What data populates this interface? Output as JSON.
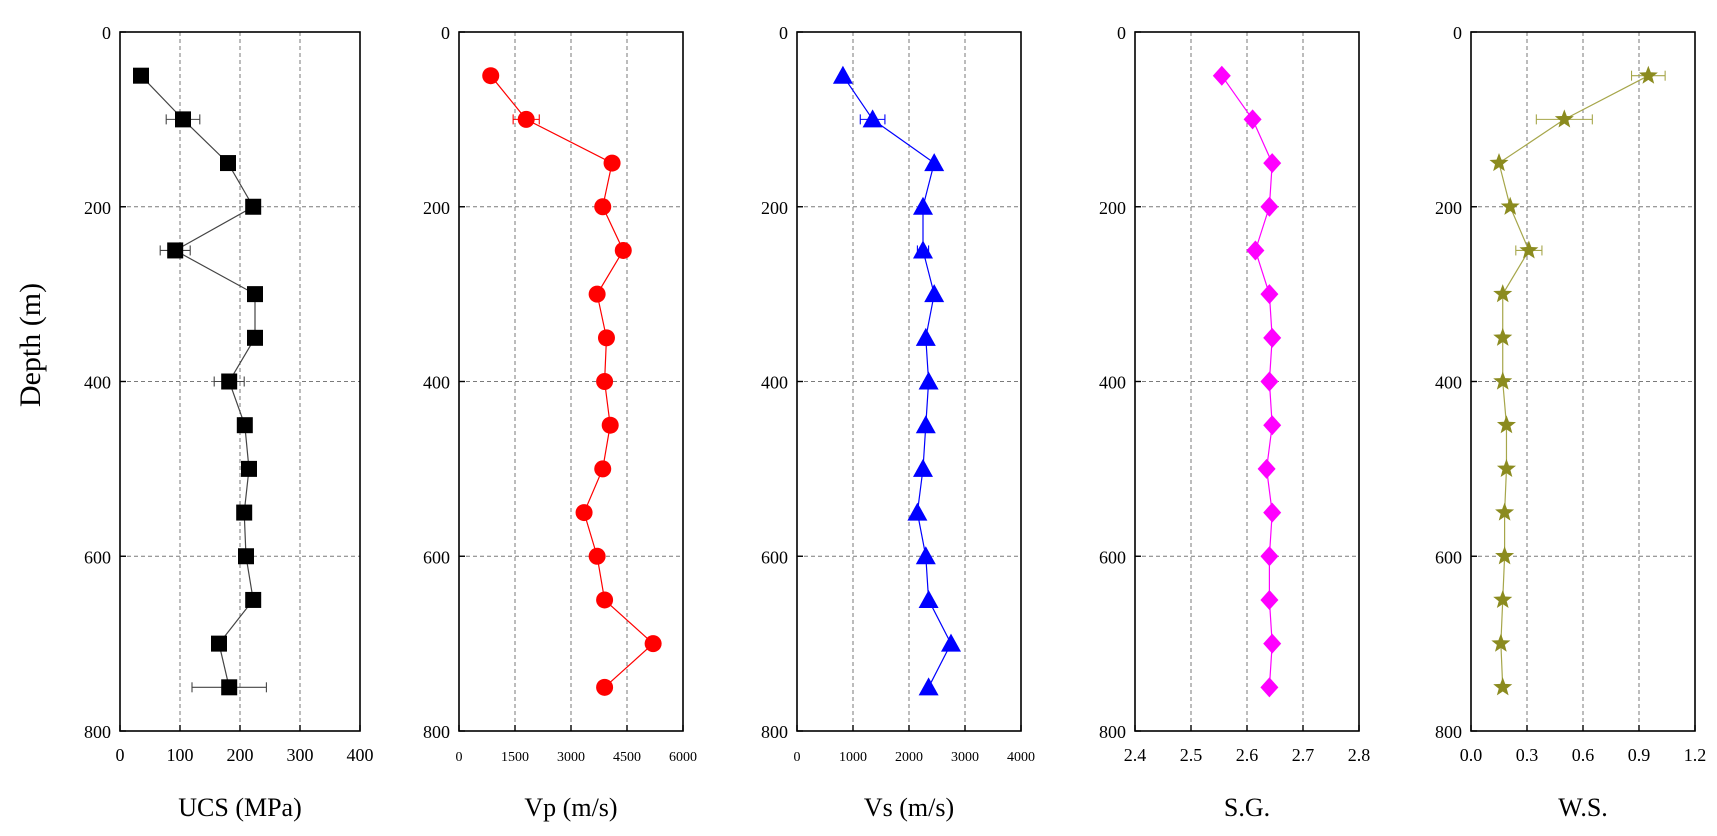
{
  "chart_data": [
    {
      "type": "line",
      "xlabel": "UCS (MPa)",
      "ylabel": "Depth (m)",
      "xlim": [
        0,
        400
      ],
      "ylim": [
        0,
        800
      ],
      "y_reversed": true,
      "xticks": [
        0,
        100,
        200,
        300,
        400
      ],
      "xtick_labels": [
        "0",
        "100",
        "200",
        "300",
        "400"
      ],
      "yticks": [
        0,
        200,
        400,
        600,
        800
      ],
      "ytick_labels": [
        "0",
        "200",
        "400",
        "600",
        "800"
      ],
      "grid": true,
      "color": "#000000",
      "line_color": "#444444",
      "marker": "square",
      "depths": [
        50,
        100,
        150,
        200,
        250,
        300,
        350,
        400,
        450,
        500,
        550,
        600,
        650,
        700,
        750
      ],
      "values": [
        35,
        105,
        180,
        222,
        92,
        225,
        225,
        182,
        208,
        215,
        207,
        210,
        222,
        165,
        182
      ],
      "errors": [
        2,
        28,
        12,
        6,
        25,
        10,
        5,
        25,
        8,
        8,
        8,
        8,
        5,
        5,
        62
      ]
    },
    {
      "type": "line",
      "xlabel": "Vp (m/s)",
      "xlim": [
        0,
        6000
      ],
      "ylim": [
        0,
        800
      ],
      "y_reversed": true,
      "xticks": [
        0,
        1500,
        3000,
        4500,
        6000
      ],
      "xtick_labels": [
        "0",
        "1500",
        "3000",
        "4500",
        "6000"
      ],
      "yticks": [
        0,
        200,
        400,
        600,
        800
      ],
      "ytick_labels": [
        "0",
        "200",
        "400",
        "600",
        "800"
      ],
      "grid": true,
      "color": "#ff0000",
      "line_color": "#ff0000",
      "marker": "circle",
      "depths": [
        50,
        100,
        150,
        200,
        250,
        300,
        350,
        400,
        450,
        500,
        550,
        600,
        650,
        700,
        750
      ],
      "values": [
        850,
        1800,
        4100,
        3850,
        4400,
        3700,
        3950,
        3900,
        4050,
        3850,
        3350,
        3700,
        3900,
        5200,
        3900
      ],
      "errors": [
        0,
        350,
        0,
        0,
        0,
        100,
        0,
        0,
        0,
        0,
        0,
        0,
        0,
        0,
        0
      ]
    },
    {
      "type": "line",
      "xlabel": "Vs (m/s)",
      "xlim": [
        0,
        4000
      ],
      "ylim": [
        0,
        800
      ],
      "y_reversed": true,
      "xticks": [
        0,
        1000,
        2000,
        3000,
        4000
      ],
      "xtick_labels": [
        "0",
        "1000",
        "2000",
        "3000",
        "4000"
      ],
      "yticks": [
        0,
        200,
        400,
        600,
        800
      ],
      "ytick_labels": [
        "0",
        "200",
        "400",
        "600",
        "800"
      ],
      "grid": true,
      "color": "#0000ff",
      "line_color": "#0000ff",
      "marker": "triangle",
      "depths": [
        50,
        100,
        150,
        200,
        250,
        300,
        350,
        400,
        450,
        500,
        550,
        600,
        650,
        700,
        750
      ],
      "values": [
        820,
        1350,
        2450,
        2250,
        2250,
        2450,
        2300,
        2350,
        2300,
        2250,
        2150,
        2300,
        2350,
        2750,
        2350
      ],
      "errors": [
        0,
        220,
        0,
        0,
        100,
        0,
        0,
        0,
        0,
        0,
        0,
        0,
        0,
        0,
        0
      ]
    },
    {
      "type": "line",
      "xlabel": "S.G.",
      "xlim": [
        2.4,
        2.8
      ],
      "ylim": [
        0,
        800
      ],
      "y_reversed": true,
      "xticks": [
        2.4,
        2.5,
        2.6,
        2.7,
        2.8
      ],
      "xtick_labels": [
        "2.4",
        "2.5",
        "2.6",
        "2.7",
        "2.8"
      ],
      "yticks": [
        0,
        200,
        400,
        600,
        800
      ],
      "ytick_labels": [
        "0",
        "200",
        "400",
        "600",
        "800"
      ],
      "grid": true,
      "color": "#ff00ff",
      "line_color": "#ff00ff",
      "marker": "diamond",
      "depths": [
        50,
        100,
        150,
        200,
        250,
        300,
        350,
        400,
        450,
        500,
        550,
        600,
        650,
        700,
        750
      ],
      "values": [
        2.555,
        2.61,
        2.645,
        2.64,
        2.615,
        2.64,
        2.645,
        2.64,
        2.645,
        2.635,
        2.645,
        2.64,
        2.64,
        2.645,
        2.64
      ],
      "errors": [
        0,
        0.005,
        0,
        0,
        0,
        0,
        0,
        0,
        0,
        0,
        0,
        0,
        0,
        0,
        0
      ]
    },
    {
      "type": "line",
      "xlabel": "W.S.",
      "xlim": [
        0,
        1.2
      ],
      "ylim": [
        0,
        800
      ],
      "y_reversed": true,
      "xticks": [
        0,
        0.3,
        0.6,
        0.9,
        1.2
      ],
      "xtick_labels": [
        "0.0",
        "0.3",
        "0.6",
        "0.9",
        "1.2"
      ],
      "yticks": [
        0,
        200,
        400,
        600,
        800
      ],
      "ytick_labels": [
        "0",
        "200",
        "400",
        "600",
        "800"
      ],
      "grid": true,
      "color": "#8b8b1f",
      "line_color": "#a6a64a",
      "marker": "star",
      "depths": [
        50,
        100,
        150,
        200,
        250,
        300,
        350,
        400,
        450,
        500,
        550,
        600,
        650,
        700,
        750
      ],
      "values": [
        0.95,
        0.5,
        0.15,
        0.21,
        0.31,
        0.17,
        0.17,
        0.17,
        0.19,
        0.19,
        0.18,
        0.18,
        0.17,
        0.16,
        0.17
      ],
      "errors": [
        0.09,
        0.15,
        0,
        0,
        0.07,
        0,
        0,
        0,
        0,
        0,
        0,
        0,
        0,
        0,
        0
      ]
    }
  ]
}
